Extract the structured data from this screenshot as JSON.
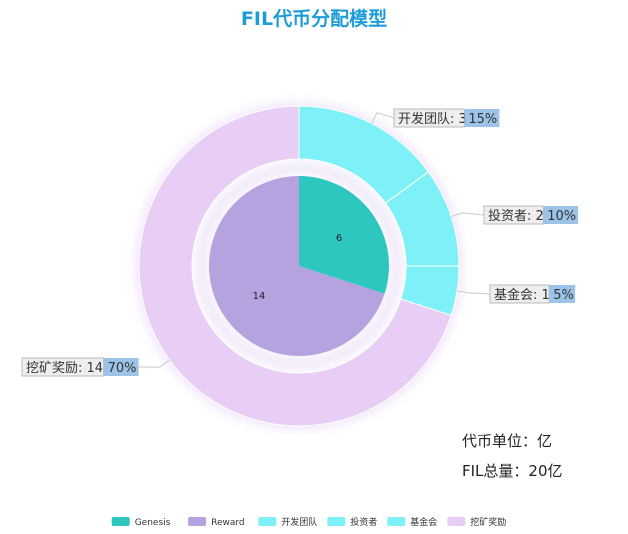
{
  "chart_data": {
    "type": "pie",
    "title": "FIL代币分配模型",
    "inner_ring": [
      {
        "name": "Genesis",
        "value": 6,
        "color": "#2ec7c0"
      },
      {
        "name": "Reward",
        "value": 14,
        "color": "#b6a2de"
      }
    ],
    "outer_ring": [
      {
        "name": "开发团队",
        "value": 3,
        "percent": "15%",
        "color": "#7ef0f7"
      },
      {
        "name": "投资者",
        "value": 2,
        "percent": "10%",
        "color": "#7ef0f7"
      },
      {
        "name": "基金会",
        "value": 1,
        "percent": "5%",
        "color": "#7ef0f7"
      },
      {
        "name": "挖矿奖励",
        "value": 14,
        "percent": "70%",
        "color": "#e8cdf5"
      }
    ],
    "legend": {
      "position": "bottom",
      "items": [
        {
          "name": "Genesis",
          "color": "#2ec7c0"
        },
        {
          "name": "Reward",
          "color": "#b6a2de"
        },
        {
          "name": "开发团队",
          "color": "#7ef0f7"
        },
        {
          "name": "投资者",
          "color": "#7ef0f7"
        },
        {
          "name": "基金会",
          "color": "#7ef0f7"
        },
        {
          "name": "挖矿奖励",
          "color": "#e8cdf5"
        }
      ]
    },
    "notes": {
      "unit": "代币单位：亿",
      "total": "FIL总量：20亿"
    }
  }
}
